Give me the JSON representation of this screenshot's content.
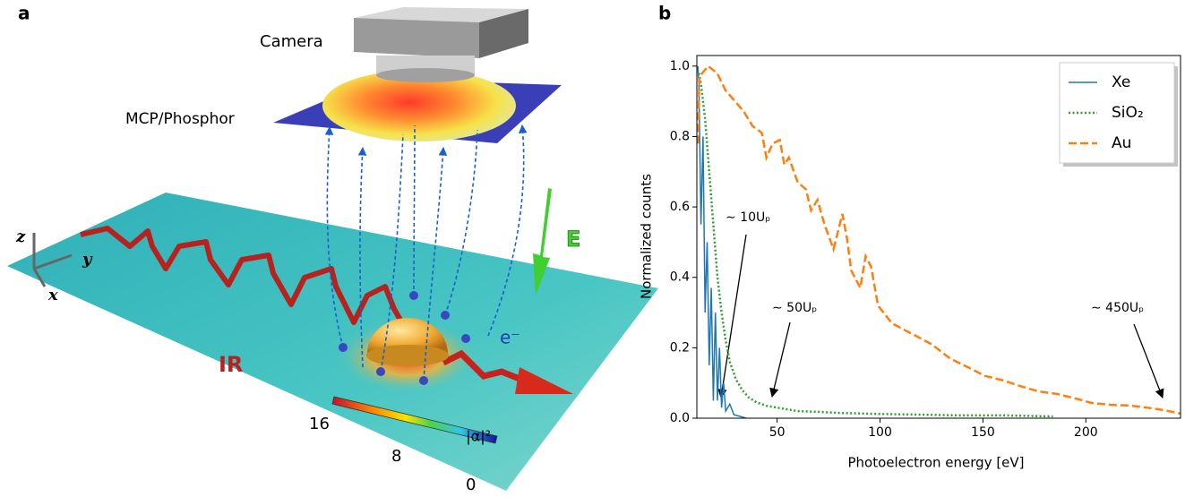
{
  "panel_a": {
    "label": "a",
    "camera": "Camera",
    "detector": "MCP/Phosphor",
    "ir": "IR",
    "field": "E",
    "electron": "e⁻",
    "axes": {
      "z": "z",
      "y": "y",
      "x": "x"
    },
    "colorbar": {
      "title": "|α|²",
      "ticks": [
        "16",
        "8",
        "0"
      ]
    }
  },
  "panel_b": {
    "label": "b"
  },
  "chart_data": {
    "type": "line",
    "xlabel": "Photoelectron energy [eV]",
    "ylabel": "Normalized counts",
    "xlim": [
      11,
      246
    ],
    "ylim": [
      0,
      1.03
    ],
    "xticks": [
      50,
      100,
      150,
      200
    ],
    "yticks": [
      {
        "value": 0,
        "label": "0.0"
      },
      0.2,
      0.4,
      0.6,
      0.8,
      {
        "value": 1,
        "label": "1.0"
      }
    ],
    "legend": "upper right",
    "series": [
      {
        "name": "Xe",
        "color": "#1f77b4",
        "style": "solid",
        "x": [
          11.5,
          12,
          13,
          14,
          15,
          16,
          17,
          18,
          19,
          20,
          21,
          22,
          23,
          24,
          25,
          27,
          29,
          32,
          35
        ],
        "values": [
          1.0,
          0.95,
          0.55,
          0.8,
          0.3,
          0.5,
          0.15,
          0.37,
          0.05,
          0.3,
          0.05,
          0.2,
          0.03,
          0.1,
          0.02,
          0.04,
          0.01,
          0.005,
          0
        ]
      },
      {
        "name": "SiO₂",
        "color": "#2ca02c",
        "style": "dotted",
        "x": [
          12,
          13,
          15,
          17,
          19,
          21,
          23,
          25,
          27,
          30,
          33,
          36,
          40,
          45,
          50,
          60,
          70,
          80,
          100,
          120,
          140,
          160,
          184
        ],
        "values": [
          0.98,
          0.95,
          0.85,
          0.7,
          0.55,
          0.4,
          0.3,
          0.22,
          0.16,
          0.11,
          0.08,
          0.06,
          0.045,
          0.035,
          0.03,
          0.02,
          0.018,
          0.015,
          0.012,
          0.01,
          0.008,
          0.008,
          0.005
        ]
      },
      {
        "name": "Au",
        "color": "#ff7f0e",
        "style": "dashed",
        "x": [
          11.5,
          12.2,
          16.5,
          20.9,
          25,
          29.6,
          33.9,
          38,
          42.6,
          44.8,
          47.8,
          51.3,
          53.5,
          55.7,
          60,
          64,
          66.5,
          69.6,
          73,
          77.4,
          81.7,
          84,
          86,
          90.4,
          93,
          95.7,
          99,
          105.7,
          112,
          118.7,
          125,
          134,
          142.6,
          151,
          160,
          168.7,
          177,
          186,
          195,
          203,
          212,
          221,
          229.6,
          238,
          246
        ],
        "values": [
          0.78,
          0.97,
          1.0,
          0.98,
          0.93,
          0.9,
          0.87,
          0.83,
          0.81,
          0.74,
          0.78,
          0.79,
          0.72,
          0.74,
          0.67,
          0.65,
          0.59,
          0.62,
          0.55,
          0.48,
          0.58,
          0.51,
          0.42,
          0.37,
          0.46,
          0.43,
          0.32,
          0.27,
          0.25,
          0.23,
          0.21,
          0.17,
          0.145,
          0.12,
          0.107,
          0.09,
          0.076,
          0.069,
          0.056,
          0.043,
          0.038,
          0.036,
          0.03,
          0.023,
          0.013
        ]
      }
    ],
    "annotations": [
      "∼ 10Uₚ",
      "∼ 50Uₚ",
      "∼ 450Uₚ"
    ]
  }
}
